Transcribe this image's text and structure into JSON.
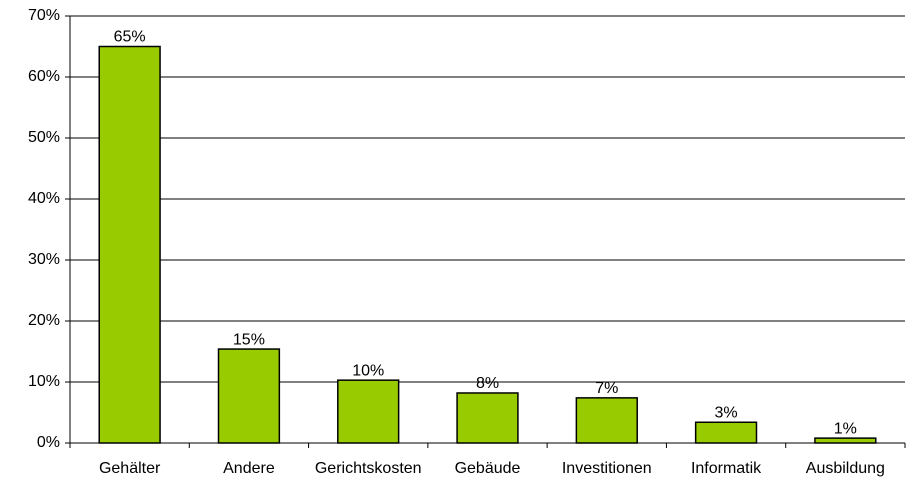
{
  "chart_data": {
    "type": "bar",
    "categories": [
      "Gehälter",
      "Andere",
      "Gerichtskosten",
      "Gebäude",
      "Investitionen",
      "Informatik",
      "Ausbildung"
    ],
    "values": [
      65,
      15.4,
      10.3,
      8.2,
      7.4,
      3.4,
      0.8
    ],
    "value_labels": [
      "65%",
      "15%",
      "10%",
      "8%",
      "7%",
      "3%",
      "1%"
    ],
    "color": "#99cc00",
    "ylim": [
      0,
      70
    ],
    "yticks": [
      {
        "value": 0,
        "label": "0%"
      },
      {
        "value": 10,
        "label": "10%"
      },
      {
        "value": 20,
        "label": "20%"
      },
      {
        "value": 30,
        "label": "30%"
      },
      {
        "value": 40,
        "label": "40%"
      },
      {
        "value": 50,
        "label": "50%"
      },
      {
        "value": 60,
        "label": "60%"
      },
      {
        "value": 70,
        "label": "70%"
      }
    ],
    "grid": true
  }
}
